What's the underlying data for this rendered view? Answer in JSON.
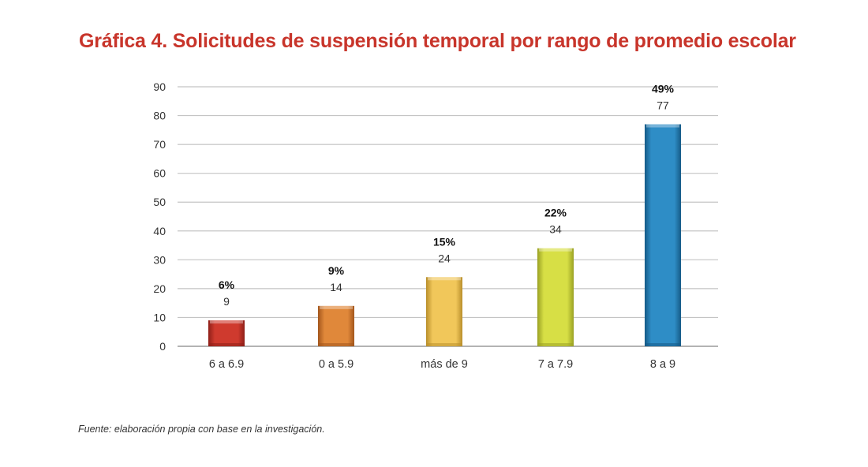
{
  "title": "Gráfica 4. Solicitudes de suspensión temporal por rango de promedio escolar",
  "source": "Fuente: elaboración propia con base en la investigación.",
  "chart_data": {
    "type": "bar",
    "title": "Gráfica 4. Solicitudes de suspensión temporal por rango de promedio escolar",
    "xlabel": "",
    "ylabel": "",
    "ylim": [
      0,
      90
    ],
    "yticks": [
      0,
      10,
      20,
      30,
      40,
      50,
      60,
      70,
      80,
      90
    ],
    "grid": true,
    "categories": [
      "6 a 6.9",
      "0 a 5.9",
      "más de 9",
      "7 a 7.9",
      "8 a 9"
    ],
    "values": [
      9,
      14,
      24,
      34,
      77
    ],
    "percent_labels": [
      "6%",
      "9%",
      "15%",
      "22%",
      "49%"
    ],
    "value_labels": [
      "9",
      "14",
      "24",
      "34",
      "77"
    ],
    "colors": [
      "#cf3a2e",
      "#e0883a",
      "#f1c75a",
      "#d7df45",
      "#2e8dc6"
    ],
    "dark_colors": [
      "#8e1f18",
      "#a3561c",
      "#b98f2c",
      "#9aa124",
      "#155a87"
    ]
  }
}
